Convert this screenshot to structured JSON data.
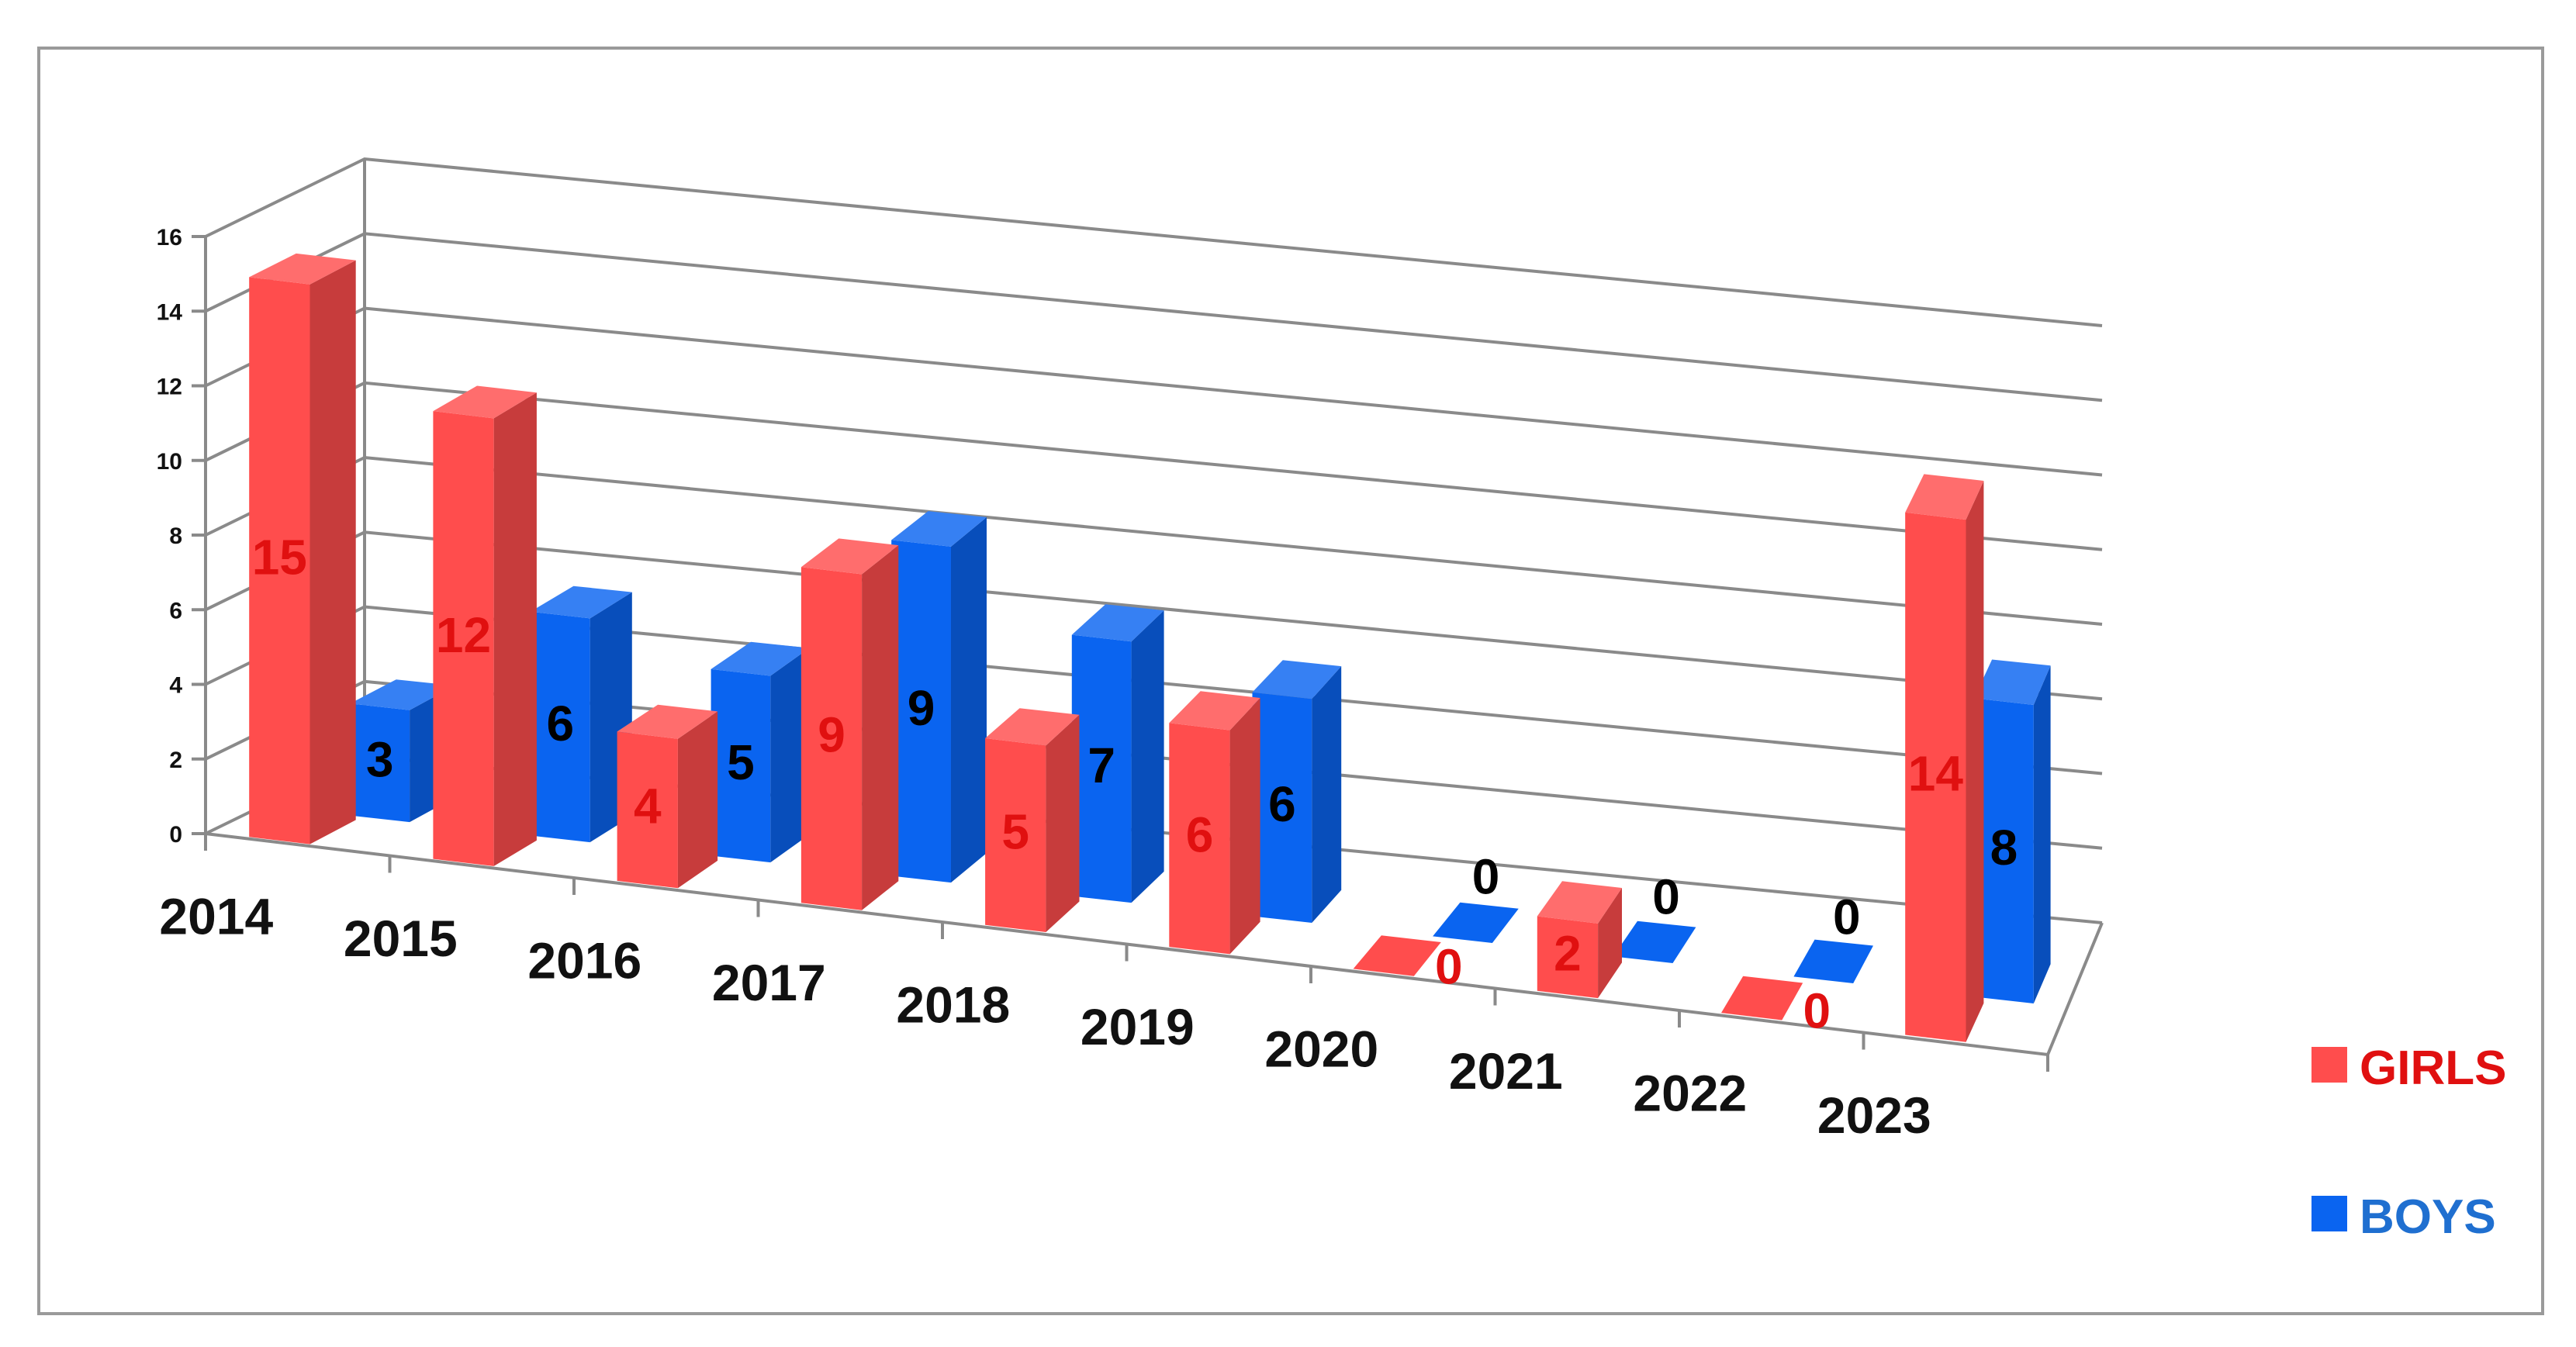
{
  "chart_data": {
    "type": "bar",
    "categories": [
      "2014",
      "2015",
      "2016",
      "2017",
      "2018",
      "2019",
      "2020",
      "2021",
      "2022",
      "2023"
    ],
    "series": [
      {
        "name": "GIRLS",
        "values": [
          15,
          12,
          4,
          9,
          5,
          6,
          0,
          2,
          0,
          14
        ],
        "color": "#ff4d4d",
        "label_color": "#e01010"
      },
      {
        "name": "BOYS",
        "values": [
          3,
          6,
          5,
          9,
          7,
          6,
          0,
          0,
          0,
          8
        ],
        "color": "#0a64f0",
        "label_color": "#000000"
      }
    ],
    "y_ticks": [
      "0",
      "2",
      "4",
      "6",
      "8",
      "10",
      "12",
      "14",
      "16"
    ],
    "ylim": [
      0,
      16
    ],
    "grid": true,
    "legend": "right",
    "three_d": true
  }
}
